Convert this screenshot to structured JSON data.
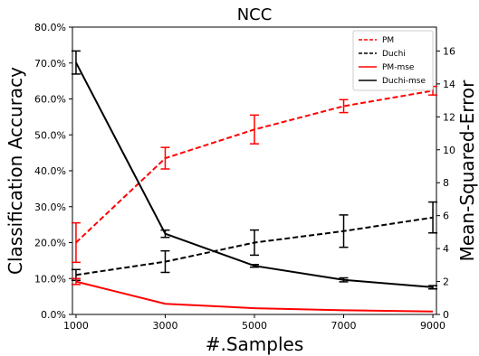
{
  "chart_data": {
    "type": "line",
    "title": "NCC",
    "xlabel": "#.Samples",
    "ylabel_left": "Classification Accuracy",
    "ylabel_right": "Mean-Squared-Error",
    "x": [
      1000,
      3000,
      5000,
      7000,
      9000
    ],
    "x_ticks": [
      "1000",
      "3000",
      "5000",
      "7000",
      "9000"
    ],
    "y_left_ticks": [
      "0.0%",
      "10.0%",
      "20.0%",
      "30.0%",
      "40.0%",
      "50.0%",
      "60.0%",
      "70.0%",
      "80.0%"
    ],
    "y_right_ticks": [
      "0",
      "2",
      "4",
      "6",
      "8",
      "10",
      "12",
      "14",
      "16"
    ],
    "ylim_left": [
      0,
      80
    ],
    "ylim_right": [
      0,
      17.45
    ],
    "xlim": [
      920,
      9080
    ],
    "grid": false,
    "legend_position": "top-right",
    "series": [
      {
        "name": "PM",
        "axis": "left",
        "color": "#ff0000",
        "dash": true,
        "values": [
          20.0,
          43.5,
          51.5,
          58.0,
          62.3
        ],
        "err": [
          5.5,
          3.0,
          4.0,
          1.8,
          1.2
        ]
      },
      {
        "name": "Duchi",
        "axis": "left",
        "color": "#000000",
        "dash": true,
        "values": [
          11.0,
          14.7,
          20.0,
          23.2,
          27.0
        ],
        "err": [
          1.5,
          3.0,
          3.5,
          4.5,
          4.3
        ]
      },
      {
        "name": "PM-mse",
        "axis": "right",
        "color": "#ff0000",
        "dash": false,
        "values": [
          2.0,
          0.65,
          0.38,
          0.25,
          0.18
        ],
        "err": [
          0.18,
          0,
          0,
          0,
          0
        ]
      },
      {
        "name": "Duchi-mse",
        "axis": "right",
        "color": "#000000",
        "dash": false,
        "values": [
          15.3,
          4.9,
          2.95,
          2.1,
          1.65
        ],
        "err": [
          0.7,
          0.22,
          0.08,
          0.12,
          0.1
        ]
      }
    ]
  }
}
